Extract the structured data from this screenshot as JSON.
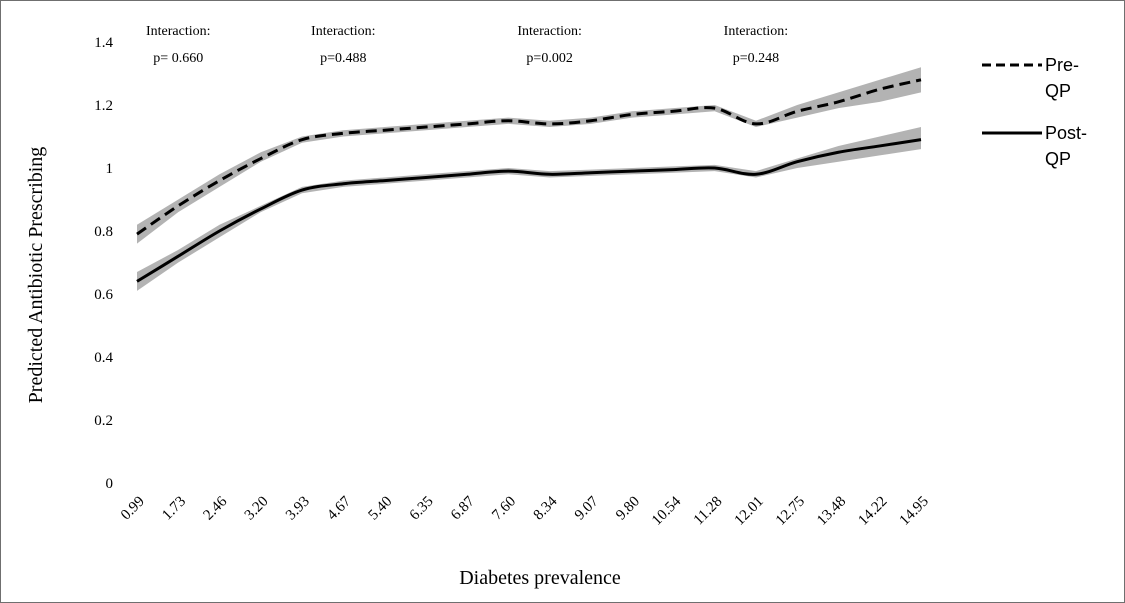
{
  "chart_data": {
    "type": "line",
    "xlabel": "Diabetes prevalence",
    "ylabel": "Predicted Antibiotic Prescribing",
    "categories": [
      "0.99",
      "1.73",
      "2.46",
      "3.20",
      "3.93",
      "4.67",
      "5.40",
      "6.35",
      "6.87",
      "7.60",
      "8.34",
      "9.07",
      "9.80",
      "10.54",
      "11.28",
      "12.01",
      "12.75",
      "13.48",
      "14.22",
      "14.95"
    ],
    "ylim": [
      0,
      1.4
    ],
    "yticks": [
      0,
      0.2,
      0.4,
      0.6,
      0.8,
      1,
      1.2,
      1.4
    ],
    "ytick_labels": [
      "0",
      "0.2",
      "0.4",
      "0.6",
      "0.8",
      "1",
      "1.2",
      "1.4"
    ],
    "grid": false,
    "legend_position": "right",
    "series": [
      {
        "name": "Pre-QP",
        "style": "dashed",
        "color": "#000000",
        "values": [
          0.79,
          0.88,
          0.96,
          1.03,
          1.09,
          1.11,
          1.12,
          1.13,
          1.14,
          1.15,
          1.14,
          1.15,
          1.17,
          1.18,
          1.19,
          1.14,
          1.18,
          1.21,
          1.25,
          1.28
        ],
        "ci_lower": [
          0.76,
          0.86,
          0.94,
          1.02,
          1.08,
          1.1,
          1.11,
          1.12,
          1.13,
          1.14,
          1.13,
          1.14,
          1.16,
          1.17,
          1.18,
          1.13,
          1.16,
          1.19,
          1.21,
          1.24
        ],
        "ci_upper": [
          0.82,
          0.9,
          0.98,
          1.05,
          1.1,
          1.12,
          1.13,
          1.14,
          1.15,
          1.16,
          1.15,
          1.16,
          1.18,
          1.19,
          1.2,
          1.15,
          1.2,
          1.24,
          1.28,
          1.32
        ]
      },
      {
        "name": "Post-QP",
        "style": "solid",
        "color": "#000000",
        "values": [
          0.64,
          0.72,
          0.8,
          0.87,
          0.93,
          0.95,
          0.96,
          0.97,
          0.98,
          0.99,
          0.98,
          0.985,
          0.99,
          0.995,
          1.0,
          0.98,
          1.02,
          1.05,
          1.07,
          1.09
        ],
        "ci_lower": [
          0.61,
          0.7,
          0.78,
          0.86,
          0.92,
          0.94,
          0.95,
          0.96,
          0.97,
          0.98,
          0.97,
          0.975,
          0.98,
          0.985,
          0.99,
          0.97,
          1.0,
          1.02,
          1.04,
          1.06
        ],
        "ci_upper": [
          0.67,
          0.74,
          0.82,
          0.88,
          0.94,
          0.96,
          0.97,
          0.98,
          0.99,
          1.0,
          0.99,
          0.995,
          1.0,
          1.005,
          1.01,
          0.99,
          1.03,
          1.07,
          1.1,
          1.13
        ]
      }
    ],
    "band_color": "#a6a6a6",
    "annotations": [
      {
        "line1": "Interaction:",
        "line2": "p= 0.660",
        "at_category": "1.73"
      },
      {
        "line1": "Interaction:",
        "line2": "p=0.488",
        "at_category": "4.67"
      },
      {
        "line1": "Interaction:",
        "line2": "p=0.002",
        "at_category": "8.34"
      },
      {
        "line1": "Interaction:",
        "line2": "p=0.248",
        "at_category": "12.01"
      }
    ],
    "legend": [
      {
        "line1": "Pre-",
        "line2": "QP",
        "style": "dashed"
      },
      {
        "line1": "Post-",
        "line2": "QP",
        "style": "solid"
      }
    ]
  }
}
